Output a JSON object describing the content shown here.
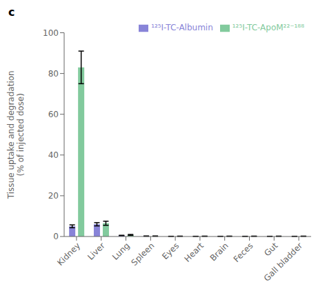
{
  "chart_data": {
    "type": "bar",
    "title": "c",
    "categories": [
      "Kidney",
      "Liver",
      "Lung",
      "Spleen",
      "Eyes",
      "Heart",
      "Brain",
      "Feces",
      "Gut",
      "Gall bladder"
    ],
    "series": [
      {
        "name": "¹²⁵I-TC-Albumin",
        "color": "#8884d8",
        "values": [
          5.0,
          6.0,
          0.5,
          0.2,
          0.1,
          0.1,
          0.1,
          0.1,
          0.1,
          0.1
        ],
        "errors": [
          0.7,
          0.8,
          0.1,
          0.05,
          0.03,
          0.03,
          0.03,
          0.03,
          0.03,
          0.03
        ]
      },
      {
        "name": "¹²⁵I-TC-ApoM²²⁻¹⁸⁸",
        "color": "#82ca9d",
        "values": [
          83.0,
          6.5,
          0.8,
          0.2,
          0.15,
          0.15,
          0.15,
          0.15,
          0.15,
          0.15
        ],
        "errors": [
          8.0,
          1.0,
          0.2,
          0.05,
          0.03,
          0.03,
          0.03,
          0.03,
          0.03,
          0.03
        ]
      }
    ],
    "ylabel": "Tissue uptake and degradation\n(% of injected dose)",
    "ylim": [
      0,
      100
    ],
    "yticks": [
      0,
      20,
      40,
      60,
      80,
      100
    ],
    "grid": false,
    "legend": "upper right"
  }
}
